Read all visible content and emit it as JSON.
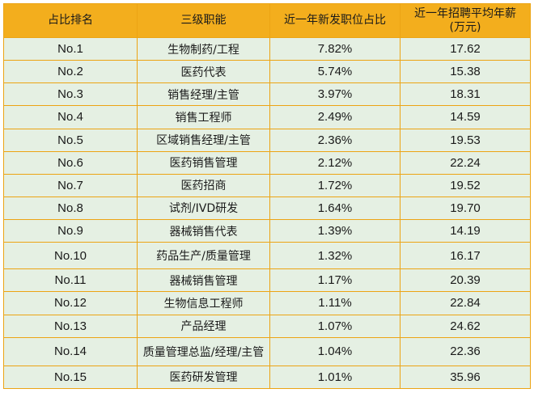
{
  "table": {
    "headers": [
      "占比排名",
      "三级职能",
      "近一年新发职位占比",
      "近一年招聘平均年薪\n(万元)"
    ],
    "rows": [
      {
        "rank": "No.1",
        "role": "生物制药/工程",
        "share": "7.82%",
        "salary": "17.62"
      },
      {
        "rank": "No.2",
        "role": "医药代表",
        "share": "5.74%",
        "salary": "15.38"
      },
      {
        "rank": "No.3",
        "role": "销售经理/主管",
        "share": "3.97%",
        "salary": "18.31"
      },
      {
        "rank": "No.4",
        "role": "销售工程师",
        "share": "2.49%",
        "salary": "14.59"
      },
      {
        "rank": "No.5",
        "role": "区域销售经理/主管",
        "share": "2.36%",
        "salary": "19.53"
      },
      {
        "rank": "No.6",
        "role": "医药销售管理",
        "share": "2.12%",
        "salary": "22.24"
      },
      {
        "rank": "No.7",
        "role": "医药招商",
        "share": "1.72%",
        "salary": "19.52"
      },
      {
        "rank": "No.8",
        "role": "试剂/IVD研发",
        "share": "1.64%",
        "salary": "19.70"
      },
      {
        "rank": "No.9",
        "role": "器械销售代表",
        "share": "1.39%",
        "salary": "14.19"
      },
      {
        "rank": "No.10",
        "role": "药品生产/质量管理",
        "share": "1.32%",
        "salary": "16.17"
      },
      {
        "rank": "No.11",
        "role": "器械销售管理",
        "share": "1.17%",
        "salary": "20.39"
      },
      {
        "rank": "No.12",
        "role": "生物信息工程师",
        "share": "1.11%",
        "salary": "22.84"
      },
      {
        "rank": "No.13",
        "role": "产品经理",
        "share": "1.07%",
        "salary": "24.62"
      },
      {
        "rank": "No.14",
        "role": "质量管理总监/经理/主管",
        "share": "1.04%",
        "salary": "22.36"
      },
      {
        "rank": "No.15",
        "role": "医药研发管理",
        "share": "1.01%",
        "salary": "35.96"
      }
    ]
  },
  "colors": {
    "header_bg": "#F3AE1D",
    "row_bg": "#E5F0E3",
    "border": "#ECA414"
  }
}
